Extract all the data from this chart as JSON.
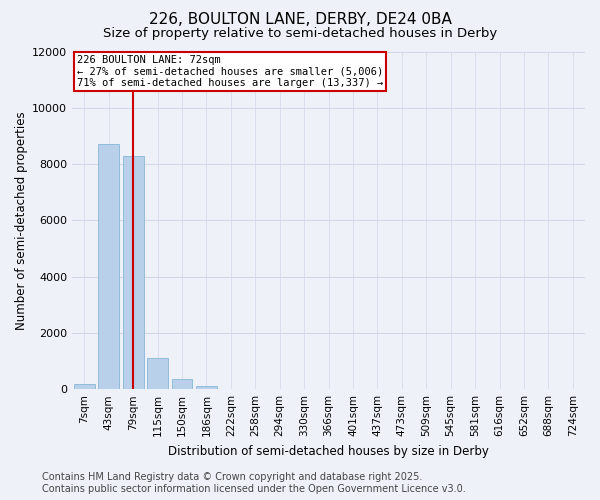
{
  "title": "226, BOULTON LANE, DERBY, DE24 0BA",
  "subtitle": "Size of property relative to semi-detached houses in Derby",
  "xlabel": "Distribution of semi-detached houses by size in Derby",
  "ylabel": "Number of semi-detached properties",
  "footer_line1": "Contains HM Land Registry data © Crown copyright and database right 2025.",
  "footer_line2": "Contains public sector information licensed under the Open Government Licence v3.0.",
  "annotation_title": "226 BOULTON LANE: 72sqm",
  "annotation_line2": "← 27% of semi-detached houses are smaller (5,006)",
  "annotation_line3": "71% of semi-detached houses are larger (13,337) →",
  "bar_labels": [
    "7sqm",
    "43sqm",
    "79sqm",
    "115sqm",
    "150sqm",
    "186sqm",
    "222sqm",
    "258sqm",
    "294sqm",
    "330sqm",
    "366sqm",
    "401sqm",
    "437sqm",
    "473sqm",
    "509sqm",
    "545sqm",
    "581sqm",
    "616sqm",
    "652sqm",
    "688sqm",
    "724sqm"
  ],
  "bar_values": [
    200,
    8700,
    8300,
    1100,
    350,
    100,
    20,
    5,
    3,
    2,
    2,
    1,
    1,
    1,
    1,
    0,
    0,
    0,
    0,
    0,
    0
  ],
  "bar_color": "#b8d0ea",
  "bar_edge_color": "#7aafd4",
  "marker_index": 2,
  "marker_color": "#cc0000",
  "ylim": [
    0,
    12000
  ],
  "yticks": [
    0,
    2000,
    4000,
    6000,
    8000,
    10000,
    12000
  ],
  "grid_color": "#d0d8e8",
  "bg_color": "#eef2f8",
  "annotation_box_color": "#ffffff",
  "annotation_box_edge": "#cc0000",
  "title_fontsize": 11,
  "subtitle_fontsize": 9.5,
  "axis_label_fontsize": 8.5,
  "tick_fontsize": 8,
  "footer_fontsize": 7
}
